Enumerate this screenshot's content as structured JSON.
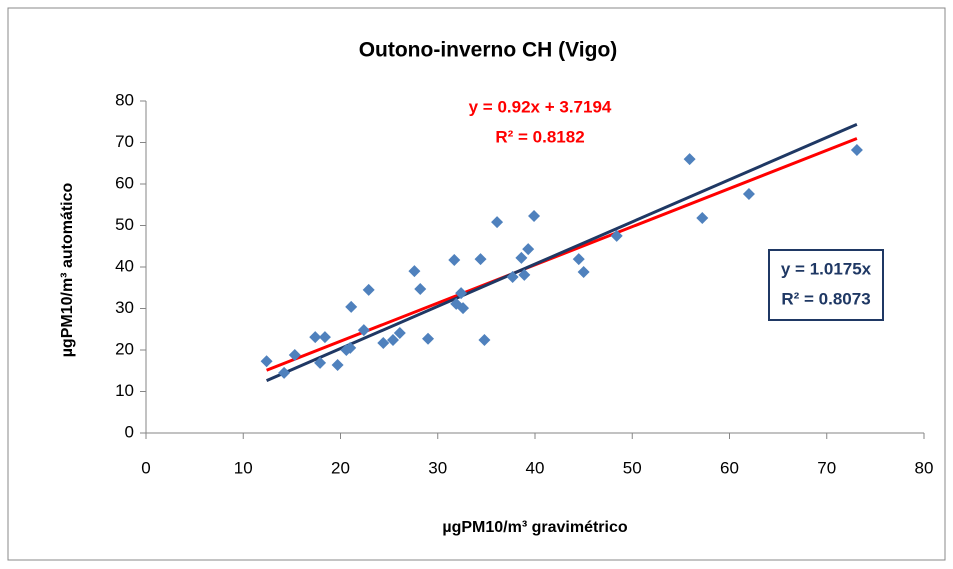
{
  "chart_data": {
    "type": "scatter",
    "title": "Outono-inverno CH (Vigo)",
    "x_label": "µgPM10/m³ gravimétrico",
    "y_label": "µgPM10/m³ automático",
    "x": [
      12.4,
      14.2,
      15.3,
      17.4,
      17.9,
      18.4,
      19.7,
      20.6,
      21.0,
      21.1,
      22.4,
      22.9,
      24.4,
      25.4,
      26.1,
      27.6,
      28.2,
      29.0,
      31.7,
      31.9,
      32.4,
      32.6,
      34.4,
      34.8,
      36.1,
      37.7,
      38.6,
      38.9,
      39.3,
      39.9,
      44.5,
      45.0,
      48.4,
      55.9,
      57.2,
      62.0,
      73.1
    ],
    "values": [
      17.3,
      14.5,
      18.8,
      23.1,
      16.9,
      23.1,
      16.4,
      20.0,
      20.5,
      30.4,
      24.8,
      34.5,
      21.7,
      22.4,
      24.1,
      39.0,
      34.7,
      22.7,
      41.7,
      31.1,
      33.7,
      30.1,
      41.9,
      22.4,
      50.8,
      37.6,
      42.2,
      38.1,
      44.3,
      52.3,
      41.9,
      38.8,
      47.5,
      66.0,
      51.8,
      57.6,
      68.2
    ],
    "color": "#4f81bd",
    "xlim": [
      0,
      80
    ],
    "xticks": [
      0,
      10,
      20,
      30,
      40,
      50,
      60,
      70,
      80
    ],
    "ylim": [
      0,
      80
    ],
    "yticks": [
      0,
      10,
      20,
      30,
      40,
      50,
      60,
      70,
      80
    ],
    "trendlines": [
      {
        "equation": "y = 0.92x + 3.7194",
        "r2": "R² = 0.8182",
        "slope": 0.92,
        "intercept": 3.7194,
        "color": "#ff0000"
      },
      {
        "equation": "y = 1.0175x",
        "r2": "R² = 0.8073",
        "slope": 1.0175,
        "intercept": 0,
        "color": "#1f3864"
      }
    ]
  }
}
